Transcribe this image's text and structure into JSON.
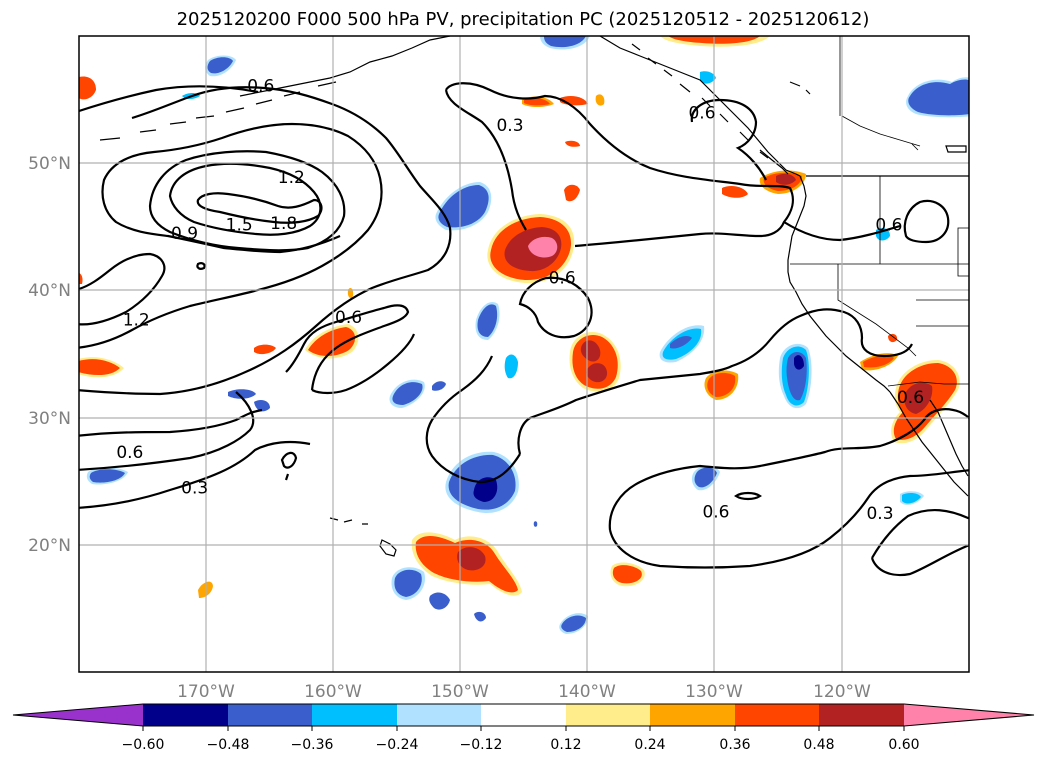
{
  "title": "2025120200 F000 500 hPa PV, precipitation PC (2025120512 - 2025120612)",
  "map": {
    "lon_range": [
      -180,
      -110
    ],
    "lat_range": [
      10,
      60
    ],
    "lat_labels": [
      "50°N",
      "40°N",
      "30°N",
      "20°N"
    ],
    "lon_labels": [
      "170°W",
      "160°W",
      "150°W",
      "140°W",
      "130°W",
      "120°W"
    ],
    "grid": true,
    "contour_labels": [
      {
        "text": "0.6",
        "lon": -165.7,
        "lat": 56.1
      },
      {
        "text": "0.3",
        "lon": -146.1,
        "lat": 53.0
      },
      {
        "text": "0.6",
        "lon": -131.0,
        "lat": 54.0
      },
      {
        "text": "1.2",
        "lon": -163.3,
        "lat": 48.9
      },
      {
        "text": "1.5",
        "lon": -167.4,
        "lat": 45.2
      },
      {
        "text": "1.8",
        "lon": -163.9,
        "lat": 45.3
      },
      {
        "text": "0.9",
        "lon": -171.7,
        "lat": 44.5
      },
      {
        "text": "0.6",
        "lon": -142.0,
        "lat": 41.0
      },
      {
        "text": "0.6",
        "lon": -116.3,
        "lat": 45.2
      },
      {
        "text": "1.2",
        "lon": -175.5,
        "lat": 37.7
      },
      {
        "text": "0.6",
        "lon": -158.8,
        "lat": 37.9
      },
      {
        "text": "0.6",
        "lon": -114.6,
        "lat": 31.6
      },
      {
        "text": "0.6",
        "lon": -176.0,
        "lat": 27.3
      },
      {
        "text": "0.3",
        "lon": -170.9,
        "lat": 24.5
      },
      {
        "text": "0.6",
        "lon": -129.9,
        "lat": 22.6
      },
      {
        "text": "0.3",
        "lon": -117.0,
        "lat": 22.5
      }
    ]
  },
  "colorbar": {
    "tick_labels": [
      "-0.60",
      "-0.48",
      "-0.36",
      "-0.24",
      "-0.12",
      "0.12",
      "0.24",
      "0.36",
      "0.48",
      "0.60"
    ],
    "colors": [
      "#9932cc",
      "#00008b",
      "#3a5fcd",
      "#00bfff",
      "#b0e2ff",
      "#ffffff",
      "#ffec8b",
      "#ffa500",
      "#ff4500",
      "#b22222",
      "#ff82ab"
    ]
  },
  "colors": {
    "pos1": "#ffec8b",
    "pos2": "#ffa500",
    "pos3": "#ff4500",
    "pos4": "#b22222",
    "pos5": "#ff82ab",
    "neg1": "#b0e2ff",
    "neg2": "#00bfff",
    "neg3": "#3a5fcd",
    "neg4": "#00008b",
    "grid": "#b0b0b0",
    "contour": "#000000"
  }
}
